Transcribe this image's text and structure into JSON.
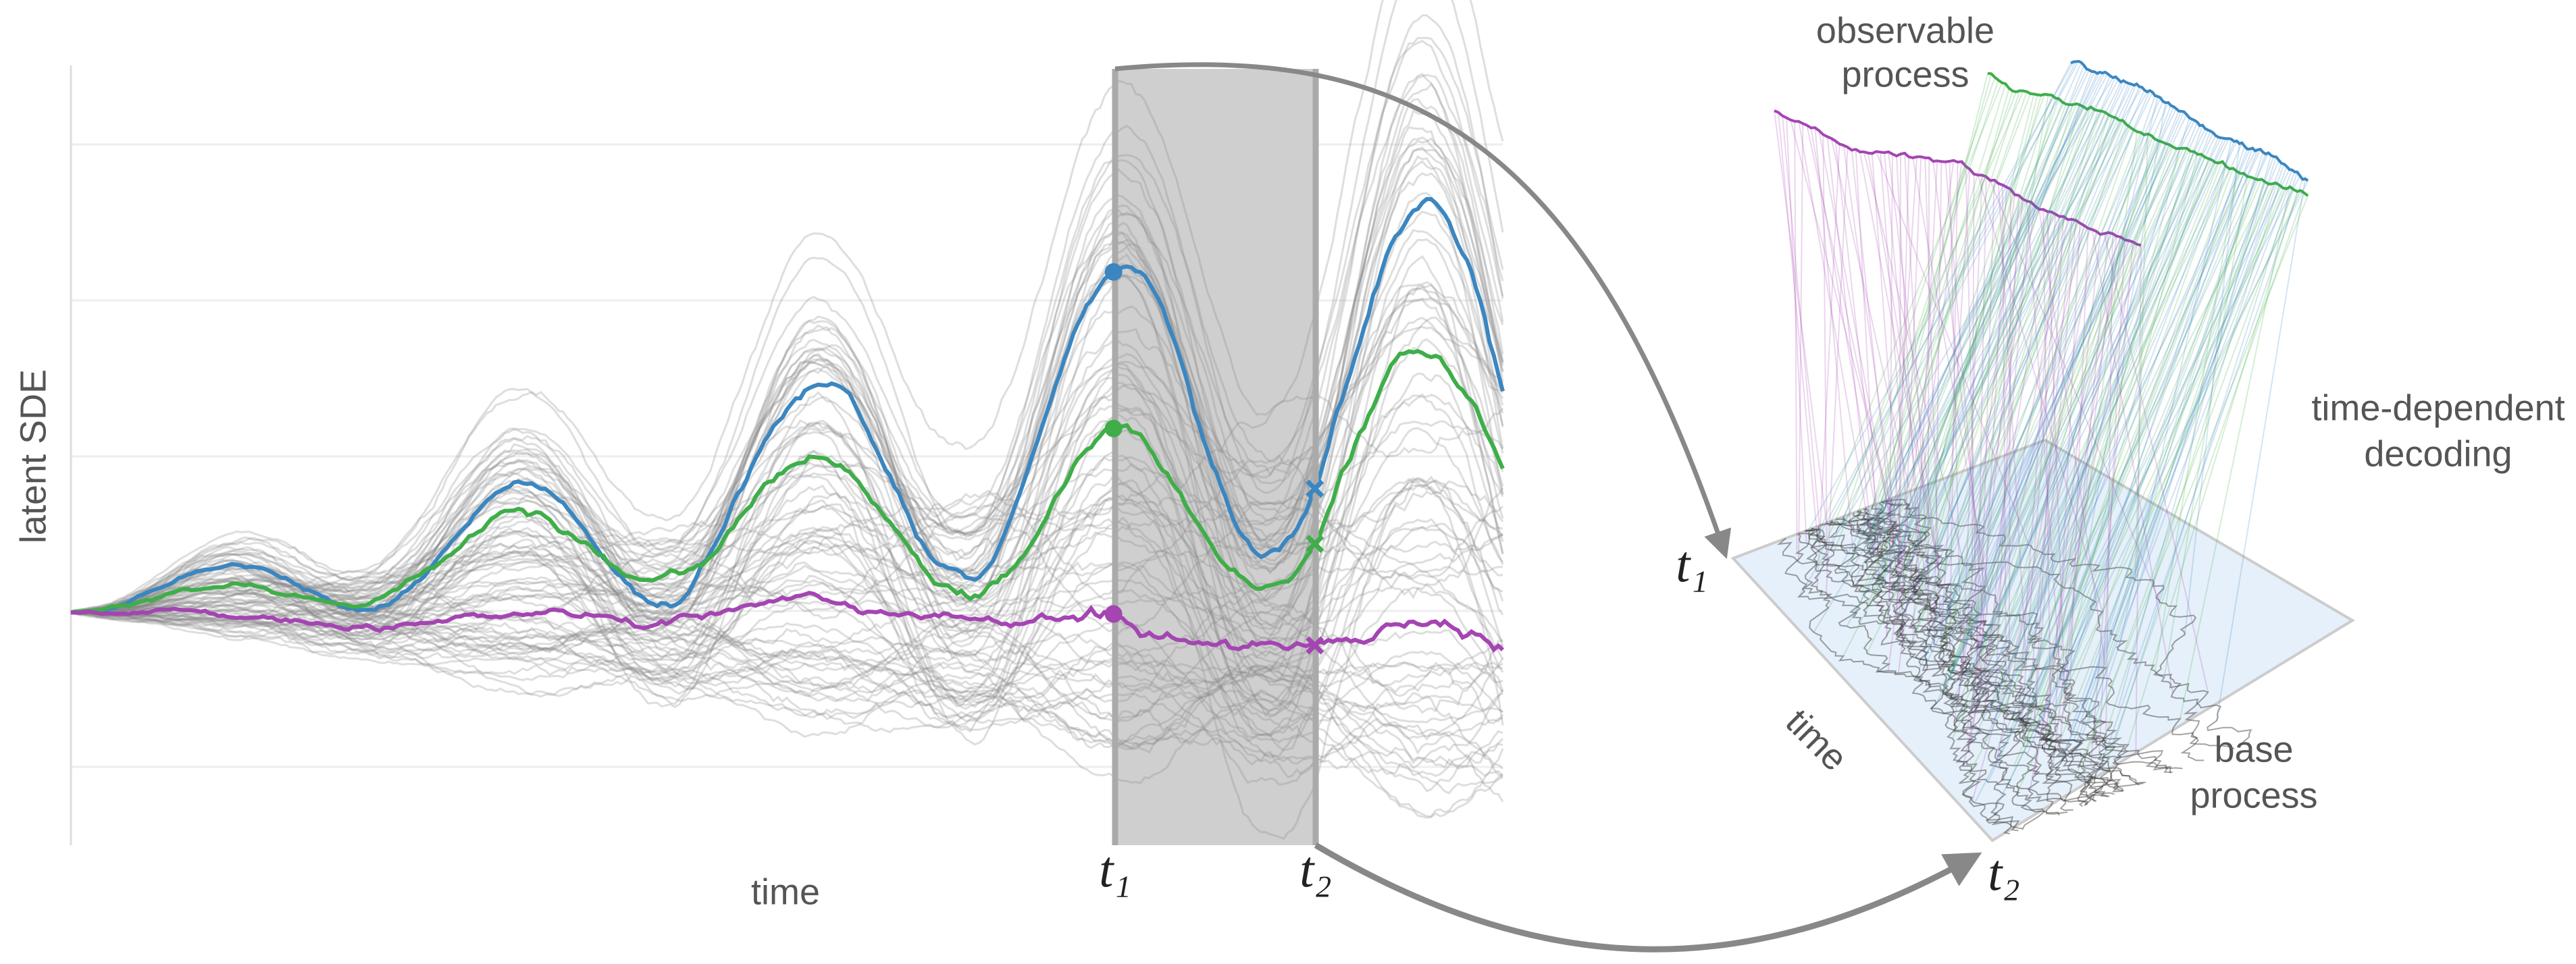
{
  "left_panel": {
    "y_label": "latent SDE",
    "x_label": "time",
    "t1": "t₁",
    "t2": "t₂"
  },
  "right_panel": {
    "observable_process": [
      "observable",
      "process"
    ],
    "decoding": [
      "time-dependent",
      "decoding"
    ],
    "time_label": "time",
    "base_process": [
      "base",
      "process"
    ],
    "t1": "t₁",
    "t2": "t₂"
  }
}
